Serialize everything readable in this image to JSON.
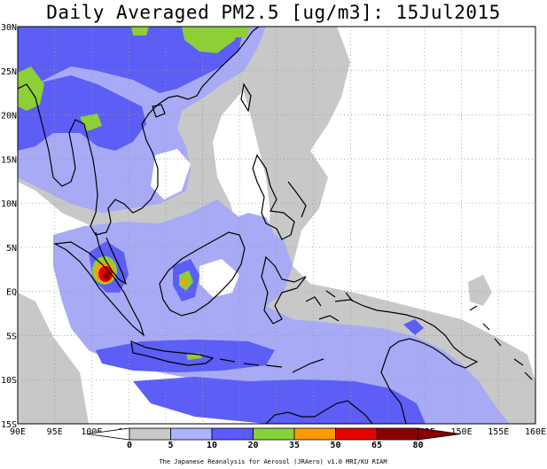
{
  "title": "Daily Averaged PM2.5 [ug/m3]: 15Jul2015",
  "credit": "The Japanese Reanalysis for Aerosol (JRAero) v1.0 MRI/KU RIAM",
  "map": {
    "lon_range": [
      90,
      160
    ],
    "lat_range": [
      -15,
      30
    ],
    "lon_ticks": [
      "90E",
      "95E",
      "100E",
      "105E",
      "110E",
      "115E",
      "120E",
      "125E",
      "130E",
      "135E",
      "140E",
      "145E",
      "150E",
      "155E",
      "160E"
    ],
    "lat_ticks": [
      "30N",
      "25N",
      "20N",
      "15N",
      "10N",
      "5N",
      "EQ",
      "5S",
      "10S",
      "15S"
    ],
    "gridlines": "dotted"
  },
  "colorbar": {
    "levels": [
      "0",
      "5",
      "10",
      "20",
      "35",
      "50",
      "65",
      "80"
    ],
    "colors": [
      "#ffffff",
      "#c8c8c8",
      "#aab4ff",
      "#5a5aff",
      "#84d23c",
      "#ff9a00",
      "#e80000",
      "#8c0000"
    ]
  },
  "field_colors": {
    "gray": "#c8c8c8",
    "light_blue": "#a8aaf5",
    "blue": "#5c5ef5",
    "green": "#8ccf36",
    "orange": "#ffa000",
    "red": "#e80000",
    "dark_red": "#8c0000"
  }
}
